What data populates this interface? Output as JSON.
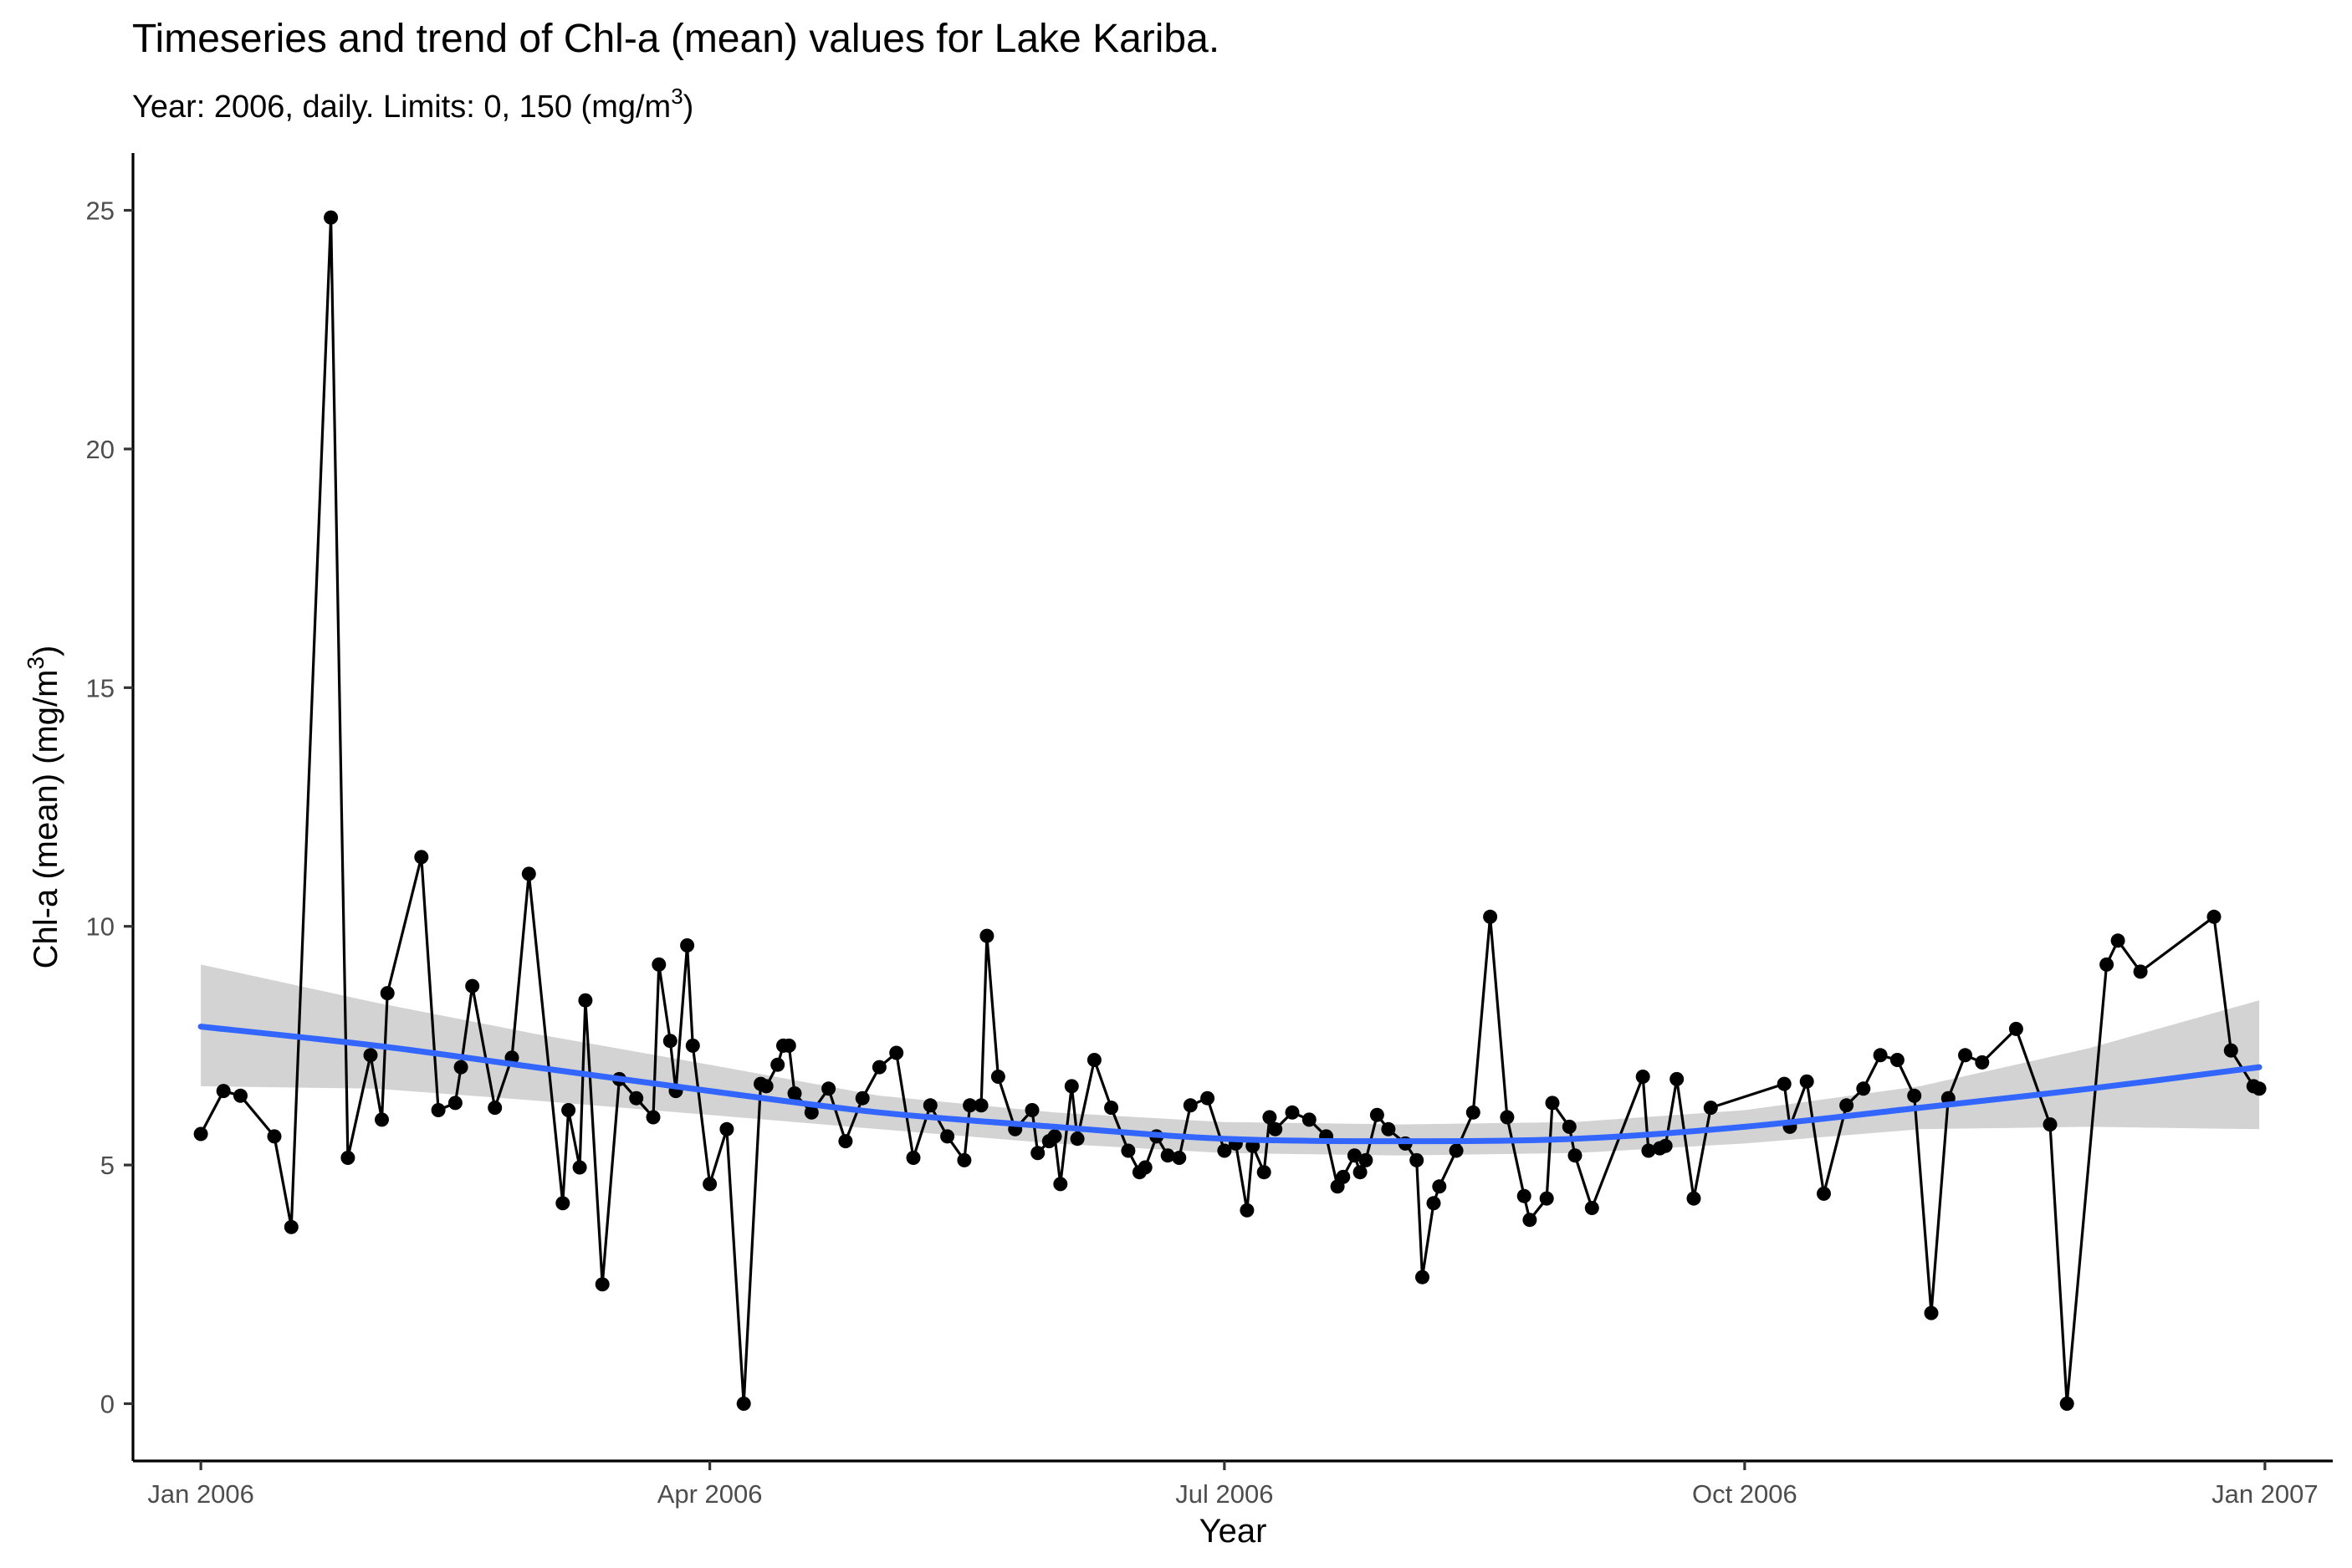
{
  "chart_data": {
    "type": "line",
    "title": "Timeseries and trend of Chl-a (mean) values for Lake Kariba.",
    "subtitle": "Year: 2006, daily. Limits: 0, 150 (mg/m3)",
    "subtitle_parts": {
      "text": "Year: 2006, daily. Limits: 0, 150 (mg/m",
      "sup": "3",
      "close": ")"
    },
    "xlabel": "Year",
    "ylabel": "Chl-a (mean) (mg/m3)",
    "ylabel_parts": {
      "text": "Chl-a (mean) (mg/m",
      "sup": "3",
      "close": ")"
    },
    "xlim": [
      "2005-12-20",
      "2007-01-13"
    ],
    "ylim": [
      -1.2,
      26.2
    ],
    "x_ticks": [
      {
        "date": "2006-01-01",
        "label": "Jan 2006"
      },
      {
        "date": "2006-04-01",
        "label": "Apr 2006"
      },
      {
        "date": "2006-07-01",
        "label": "Jul 2006"
      },
      {
        "date": "2006-10-01",
        "label": "Oct 2006"
      },
      {
        "date": "2007-01-01",
        "label": "Jan 2007"
      }
    ],
    "y_ticks": [
      0,
      5,
      10,
      15,
      20,
      25
    ],
    "grid": false,
    "legend": "none",
    "colors": {
      "series": "#000000",
      "trend": "#3366ff",
      "band": "#d3d3d3"
    },
    "series": [
      {
        "x": [
          "2006-01-01",
          "2006-01-05",
          "2006-01-08",
          "2006-01-14",
          "2006-01-17",
          "2006-01-24",
          "2006-01-27",
          "2006-01-31",
          "2006-02-02",
          "2006-02-03",
          "2006-02-09",
          "2006-02-12",
          "2006-02-15",
          "2006-02-16",
          "2006-02-18",
          "2006-02-22",
          "2006-02-25",
          "2006-02-28",
          "2006-03-06",
          "2006-03-07",
          "2006-03-09",
          "2006-03-10",
          "2006-03-13",
          "2006-03-16",
          "2006-03-19",
          "2006-03-22",
          "2006-03-23",
          "2006-03-25",
          "2006-03-26",
          "2006-03-28",
          "2006-03-29",
          "2006-04-01",
          "2006-04-04",
          "2006-04-07",
          "2006-04-10",
          "2006-04-11",
          "2006-04-13",
          "2006-04-14",
          "2006-04-15",
          "2006-04-16",
          "2006-04-19",
          "2006-04-22",
          "2006-04-25",
          "2006-04-28",
          "2006-05-01",
          "2006-05-04",
          "2006-05-07",
          "2006-05-10",
          "2006-05-13",
          "2006-05-16",
          "2006-05-17",
          "2006-05-19",
          "2006-05-20",
          "2006-05-22",
          "2006-05-25",
          "2006-05-28",
          "2006-05-29",
          "2006-05-31",
          "2006-06-01",
          "2006-06-02",
          "2006-06-04",
          "2006-06-05",
          "2006-06-08",
          "2006-06-11",
          "2006-06-14",
          "2006-06-16",
          "2006-06-17",
          "2006-06-19",
          "2006-06-21",
          "2006-06-23",
          "2006-06-25",
          "2006-06-28",
          "2006-07-01",
          "2006-07-03",
          "2006-07-05",
          "2006-07-06",
          "2006-07-08",
          "2006-07-09",
          "2006-07-10",
          "2006-07-13",
          "2006-07-16",
          "2006-07-19",
          "2006-07-21",
          "2006-07-22",
          "2006-07-24",
          "2006-07-25",
          "2006-07-26",
          "2006-07-28",
          "2006-07-30",
          "2006-08-02",
          "2006-08-04",
          "2006-08-05",
          "2006-08-07",
          "2006-08-08",
          "2006-08-11",
          "2006-08-14",
          "2006-08-17",
          "2006-08-20",
          "2006-08-23",
          "2006-08-24",
          "2006-08-27",
          "2006-08-28",
          "2006-08-31",
          "2006-09-01",
          "2006-09-04",
          "2006-09-13",
          "2006-09-14",
          "2006-09-16",
          "2006-09-17",
          "2006-09-19",
          "2006-09-22",
          "2006-09-25",
          "2006-10-08",
          "2006-10-09",
          "2006-10-12",
          "2006-10-15",
          "2006-10-19",
          "2006-10-22",
          "2006-10-25",
          "2006-10-28",
          "2006-10-31",
          "2006-11-03",
          "2006-11-06",
          "2006-11-09",
          "2006-11-12",
          "2006-11-18",
          "2006-11-24",
          "2006-11-27",
          "2006-12-04",
          "2006-12-06",
          "2006-12-10",
          "2006-12-23",
          "2006-12-26",
          "2006-12-30",
          "2006-12-31"
        ],
        "values": [
          5.65,
          6.55,
          6.45,
          5.6,
          3.7,
          24.85,
          5.15,
          7.3,
          5.95,
          8.6,
          11.45,
          6.15,
          6.3,
          7.05,
          8.75,
          6.2,
          7.25,
          11.1,
          4.2,
          6.15,
          4.95,
          8.45,
          2.5,
          6.8,
          6.4,
          6.0,
          9.2,
          7.6,
          6.55,
          9.6,
          7.5,
          4.6,
          5.75,
          0.0,
          6.7,
          6.65,
          7.1,
          7.5,
          7.5,
          6.5,
          6.1,
          6.6,
          5.5,
          6.4,
          7.05,
          7.35,
          5.15,
          6.25,
          5.6,
          5.1,
          6.25,
          6.25,
          9.8,
          6.85,
          5.75,
          6.15,
          5.25,
          5.5,
          5.6,
          4.6,
          6.65,
          5.55,
          7.2,
          6.2,
          5.3,
          4.85,
          4.95,
          5.6,
          5.2,
          5.15,
          6.25,
          6.4,
          5.3,
          5.45,
          4.05,
          5.4,
          4.85,
          6.0,
          5.75,
          6.1,
          5.95,
          5.6,
          4.55,
          4.75,
          5.2,
          4.85,
          5.1,
          6.05,
          5.75,
          5.45,
          5.1,
          2.65,
          4.2,
          4.55,
          5.3,
          6.1,
          10.2,
          6.0,
          4.35,
          3.85,
          4.3,
          6.3,
          5.8,
          5.2,
          4.1,
          6.85,
          5.3,
          5.35,
          5.4,
          6.8,
          4.3,
          6.2,
          6.7,
          5.8,
          6.75,
          4.4,
          6.25,
          6.6,
          7.3,
          7.2,
          6.45,
          1.9,
          6.4,
          7.3,
          7.15,
          7.85,
          5.85,
          0.0,
          9.2,
          9.7,
          9.05,
          10.2,
          7.4,
          6.65,
          6.6
        ]
      }
    ],
    "trend": {
      "x": [
        "2006-01-01",
        "2006-02-01",
        "2006-03-01",
        "2006-04-01",
        "2006-05-01",
        "2006-06-01",
        "2006-07-01",
        "2006-08-01",
        "2006-09-01",
        "2006-10-01",
        "2006-11-01",
        "2006-12-01",
        "2006-12-31"
      ],
      "values": [
        7.9,
        7.5,
        7.05,
        6.55,
        6.1,
        5.8,
        5.55,
        5.5,
        5.55,
        5.8,
        6.2,
        6.6,
        7.05
      ],
      "lower": [
        6.65,
        6.6,
        6.35,
        6.05,
        5.75,
        5.45,
        5.25,
        5.2,
        5.25,
        5.45,
        5.75,
        5.8,
        5.75
      ],
      "upper": [
        9.2,
        8.4,
        7.75,
        7.1,
        6.45,
        6.1,
        5.9,
        5.85,
        5.9,
        6.15,
        6.65,
        7.45,
        8.45
      ]
    }
  }
}
